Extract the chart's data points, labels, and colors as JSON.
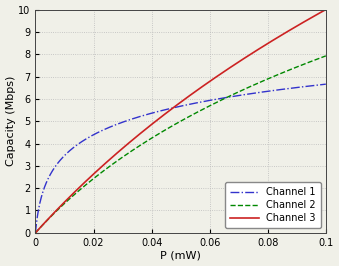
{
  "channels": [
    {
      "label": "Channel 1",
      "B": 1000000.0,
      "N": 1e-12,
      "color": "#3333CC",
      "linestyle": "-.",
      "linewidth": 1.0
    },
    {
      "label": "Channel 2",
      "B": 5000000.0,
      "N": 1e-11,
      "color": "#008800",
      "linestyle": "--",
      "linewidth": 1.0
    },
    {
      "label": "Channel 3",
      "B": 10000000.0,
      "N": 1e-11,
      "color": "#CC2222",
      "linestyle": "-",
      "linewidth": 1.2
    }
  ],
  "P_min_mW": 0.0,
  "P_max_mW": 0.1,
  "P_num": 1000,
  "xlabel": "P (mW)",
  "ylabel": "Capacity (Mbps)",
  "xlim": [
    0,
    0.1
  ],
  "ylim": [
    0,
    10
  ],
  "xticks": [
    0,
    0.02,
    0.04,
    0.06,
    0.08,
    0.1
  ],
  "yticks": [
    0,
    1,
    2,
    3,
    4,
    5,
    6,
    7,
    8,
    9,
    10
  ],
  "grid_color": "#BBBBBB",
  "background_color": "#F0F0E8",
  "legend_loc": "lower right",
  "legend_fontsize": 7.0,
  "tick_fontsize": 7.0,
  "label_fontsize": 8.0
}
